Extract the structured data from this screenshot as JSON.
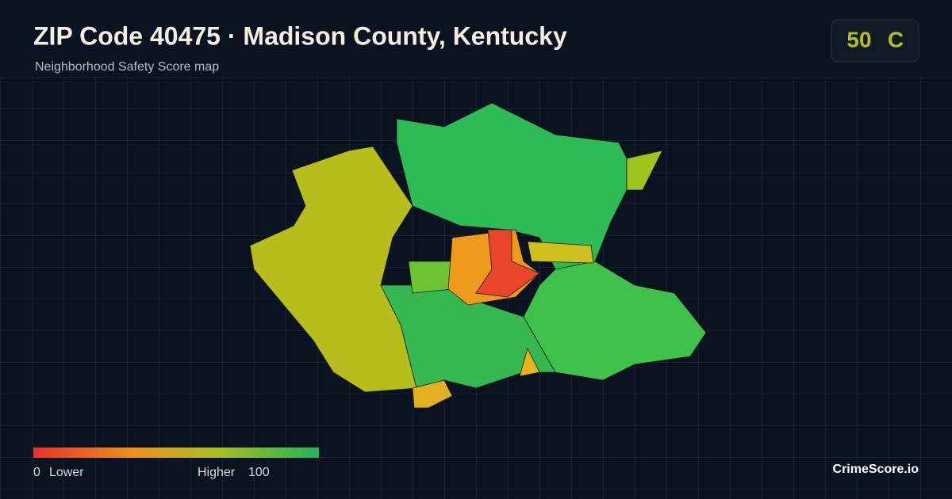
{
  "header": {
    "title": "ZIP Code 40475 · Madison County, Kentucky",
    "subtitle": "Neighborhood Safety Score map"
  },
  "score": {
    "value": "50",
    "grade": "C"
  },
  "legend": {
    "min": 0,
    "min_label": "Lower",
    "max_label": "Higher",
    "max": 100
  },
  "brand": "CrimeScore.io"
}
